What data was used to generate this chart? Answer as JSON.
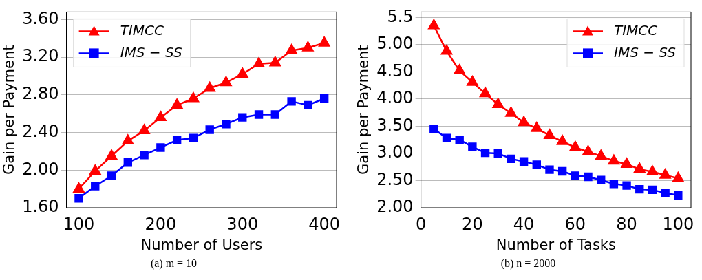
{
  "chart_data": [
    {
      "type": "line",
      "xlabel": "Number of Users",
      "ylabel": "Gain per Payment",
      "annotations": [
        "(a) m = 10"
      ],
      "x": [
        100,
        120,
        140,
        160,
        180,
        200,
        220,
        240,
        260,
        280,
        300,
        320,
        340,
        360,
        380,
        400
      ],
      "series": [
        {
          "name": "TIMCC",
          "color": "#ff0000",
          "marker": "triangle",
          "values": [
            1.8,
            1.99,
            2.15,
            2.31,
            2.42,
            2.56,
            2.69,
            2.76,
            2.87,
            2.93,
            3.02,
            3.13,
            3.14,
            3.27,
            3.3,
            3.35
          ]
        },
        {
          "name": "IMS − SS",
          "color": "#0000ff",
          "marker": "square",
          "values": [
            1.7,
            1.83,
            1.94,
            2.08,
            2.16,
            2.24,
            2.32,
            2.34,
            2.43,
            2.49,
            2.56,
            2.59,
            2.59,
            2.73,
            2.69,
            2.76
          ]
        }
      ],
      "xlim": [
        85,
        415
      ],
      "xticks": [
        100,
        200,
        300,
        400
      ],
      "ylim": [
        1.6,
        3.68
      ],
      "yticks": [
        {
          "value": 1.6,
          "label": "1.60"
        },
        {
          "value": 2,
          "label": "2.00"
        },
        {
          "value": 2.4,
          "label": "2.40"
        },
        {
          "value": 2.8,
          "label": "2.80"
        },
        {
          "value": 3.2,
          "label": "3.20"
        },
        {
          "value": 3.6,
          "label": "3.60"
        }
      ],
      "grid": "y",
      "legend": "top left",
      "line_style": "solid"
    },
    {
      "type": "line",
      "xlabel": "Number of Tasks",
      "ylabel": "Gain per Payment",
      "annotations": [
        "(b) n = 2000"
      ],
      "x": [
        5,
        10,
        15,
        20,
        25,
        30,
        35,
        40,
        45,
        50,
        55,
        60,
        65,
        70,
        75,
        80,
        85,
        90,
        95,
        100
      ],
      "series": [
        {
          "name": "TIMCC",
          "color": "#ff0000",
          "marker": "triangle",
          "values": [
            5.35,
            4.88,
            4.52,
            4.31,
            4.1,
            3.9,
            3.74,
            3.57,
            3.46,
            3.33,
            3.22,
            3.11,
            3.03,
            2.95,
            2.86,
            2.8,
            2.71,
            2.66,
            2.6,
            2.54
          ]
        },
        {
          "name": "IMS − SS",
          "color": "#0000ff",
          "marker": "square",
          "values": [
            3.45,
            3.28,
            3.25,
            3.12,
            3.01,
            3.0,
            2.9,
            2.85,
            2.79,
            2.7,
            2.67,
            2.59,
            2.57,
            2.51,
            2.44,
            2.41,
            2.34,
            2.33,
            2.27,
            2.23
          ]
        }
      ],
      "xlim": [
        0,
        105
      ],
      "xticks": [
        0,
        20,
        40,
        60,
        80,
        100
      ],
      "ylim": [
        2,
        5.6
      ],
      "yticks": [
        {
          "value": 2,
          "label": "2.00"
        },
        {
          "value": 2.5,
          "label": "2.50"
        },
        {
          "value": 3,
          "label": "3.00"
        },
        {
          "value": 3.5,
          "label": "3.50"
        },
        {
          "value": 4,
          "label": "4.00"
        },
        {
          "value": 4.5,
          "label": "4.50"
        },
        {
          "value": 5,
          "label": "5.00"
        },
        5.5
      ],
      "grid": "y",
      "legend": "top right",
      "line_style": "solid"
    }
  ]
}
